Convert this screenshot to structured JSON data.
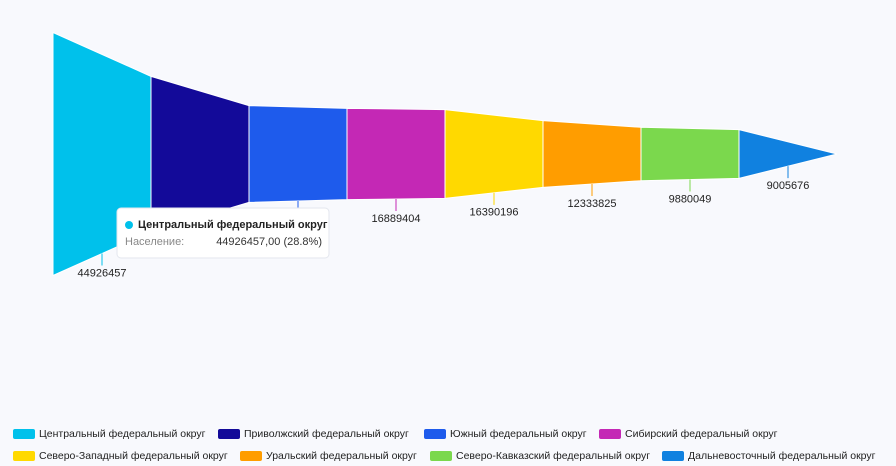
{
  "chart_data": {
    "type": "funnel",
    "categories": [
      "Центральный федеральный округ",
      "Приволжский федеральный округ",
      "Южный федеральный округ",
      "Сибирский федеральный округ",
      "Северо-Западный федеральный округ",
      "Уральский федеральный округ",
      "Северо-Кавказский федеральный округ",
      "Дальневосточный федеральный округ"
    ],
    "values": [
      44926457,
      28700000,
      17900000,
      16889404,
      16390196,
      12333825,
      9880049,
      9005676
    ],
    "colors": [
      "#00c1eb",
      "#130a99",
      "#1e5bec",
      "#c428b5",
      "#ffd900",
      "#ff9d00",
      "#7bd84d",
      "#1081e0"
    ],
    "tooltip": {
      "label": "Население:",
      "value": "44926457,00 (28.8%)"
    }
  }
}
